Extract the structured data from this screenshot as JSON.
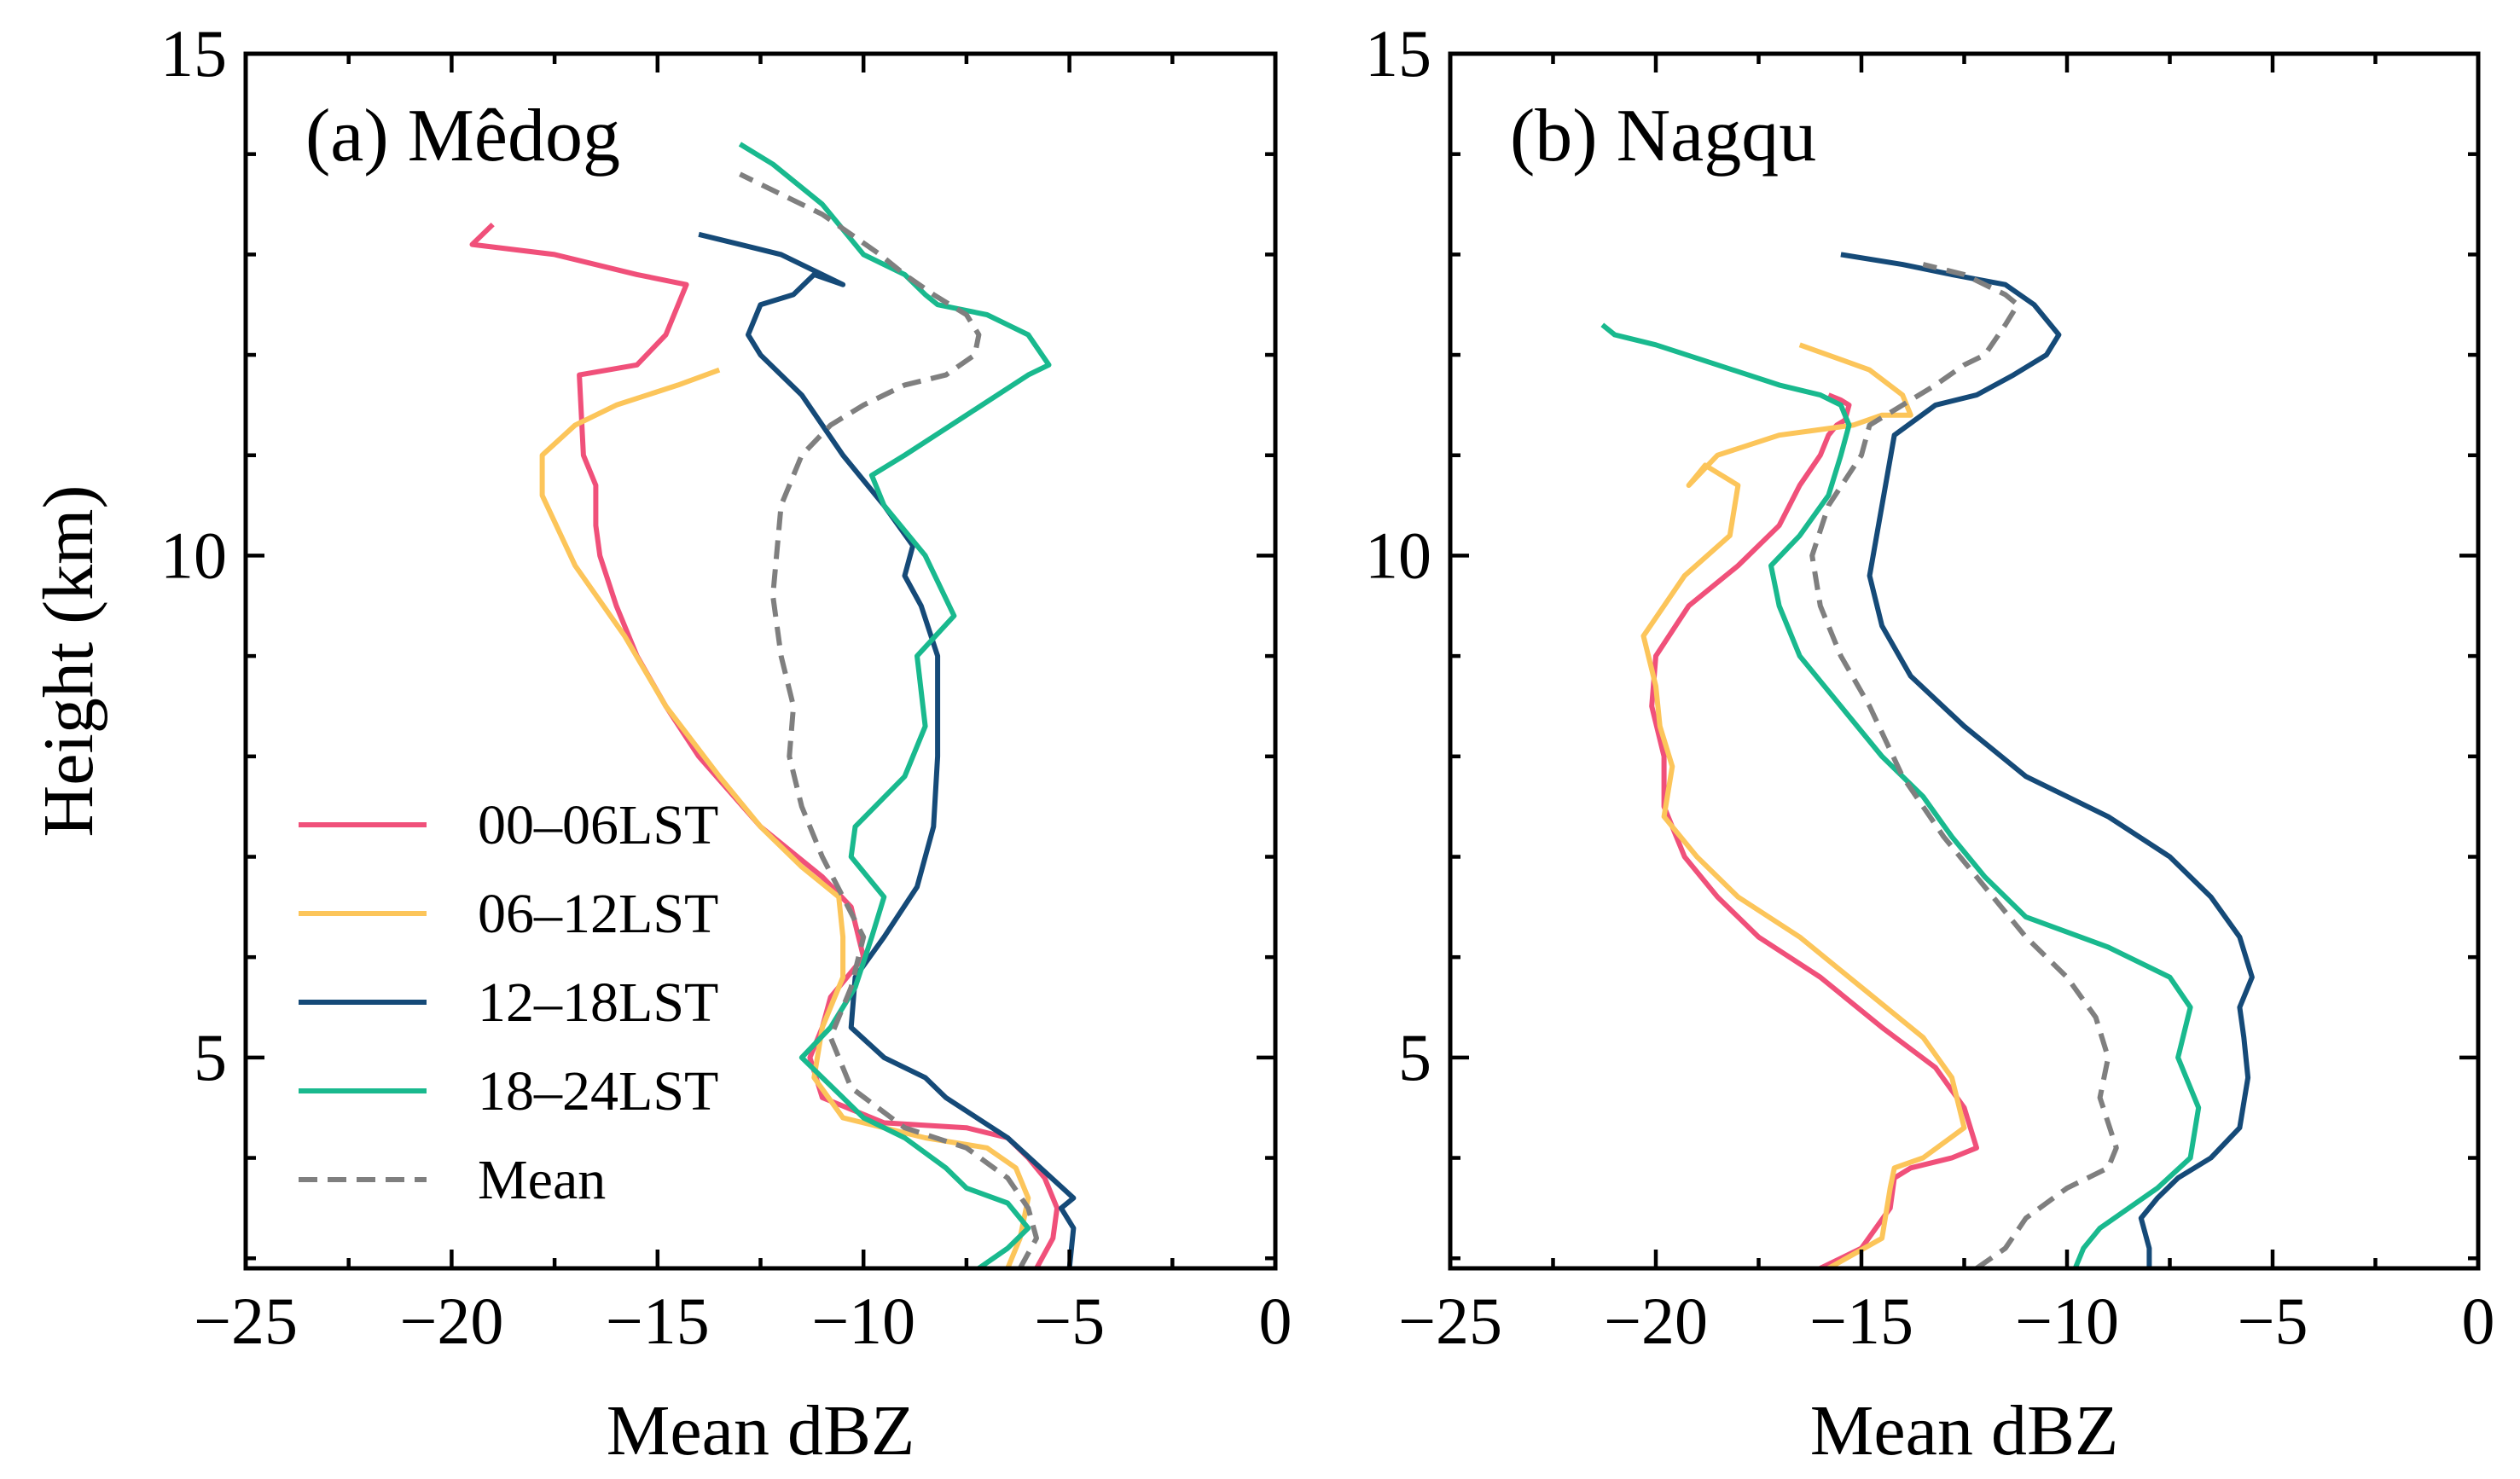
{
  "chart_data": [
    {
      "type": "line",
      "orientation": "vertical-profile",
      "title": "(a) Mêdog",
      "xlabel": "Mean dBZ",
      "ylabel": "Height (km)",
      "xlim": [
        -25,
        0
      ],
      "ylim": [
        2.9,
        15
      ],
      "xticks": [
        -25,
        -20,
        -15,
        -10,
        -5,
        0
      ],
      "xtick_labels": [
        "−25",
        "−20",
        "−15",
        "−10",
        "−5",
        "0"
      ],
      "yticks": [
        5,
        10,
        15
      ],
      "ytick_labels": [
        "5",
        "10",
        "15"
      ],
      "legend": {
        "placement": "lower-left"
      },
      "series": [
        {
          "name": "00–06LST",
          "color": "#f0507a",
          "dash": "solid",
          "x": [
            -5.8,
            -5.4,
            -5.3,
            -5.6,
            -6.0,
            -6.5,
            -7.5,
            -9.5,
            -11.0,
            -11.3,
            -11.0,
            -10.8,
            -10.0,
            -10.3,
            -11.0,
            -12.5,
            -14.0,
            -14.8,
            -15.5,
            -16.0,
            -16.4,
            -16.5,
            -16.5,
            -16.8,
            -16.9,
            -15.5,
            -14.8,
            -14.3,
            -15.5,
            -17.5,
            -19.5,
            -19.0
          ],
          "y": [
            2.9,
            3.2,
            3.5,
            3.8,
            4.0,
            4.2,
            4.3,
            4.35,
            4.6,
            5.0,
            5.3,
            5.6,
            6.0,
            6.5,
            6.8,
            7.3,
            8.0,
            8.5,
            9.0,
            9.5,
            10.0,
            10.3,
            10.7,
            11.0,
            11.8,
            11.9,
            12.2,
            12.7,
            12.8,
            13.0,
            13.1,
            13.3
          ]
        },
        {
          "name": "06–12LST",
          "color": "#fcc55a",
          "dash": "solid",
          "x": [
            -6.5,
            -6.2,
            -6.0,
            -6.3,
            -7.0,
            -8.5,
            -10.5,
            -11.2,
            -11.0,
            -10.5,
            -10.5,
            -10.6,
            -11.5,
            -12.5,
            -13.5,
            -14.8,
            -15.8,
            -17.0,
            -17.8,
            -17.8,
            -17.0,
            -16.0,
            -14.5,
            -13.5
          ],
          "y": [
            2.9,
            3.2,
            3.6,
            3.9,
            4.1,
            4.2,
            4.4,
            4.8,
            5.3,
            5.8,
            6.2,
            6.6,
            6.9,
            7.3,
            7.8,
            8.5,
            9.2,
            9.9,
            10.6,
            11.0,
            11.3,
            11.5,
            11.7,
            11.85
          ]
        },
        {
          "name": "12–18LST",
          "color": "#154a78",
          "dash": "solid",
          "x": [
            -5.0,
            -4.9,
            -5.2,
            -4.9,
            -6.5,
            -8.0,
            -8.5,
            -9.5,
            -10.3,
            -10.2,
            -9.5,
            -8.7,
            -8.3,
            -8.2,
            -8.2,
            -8.2,
            -8.6,
            -9.0,
            -8.8,
            -9.5,
            -10.5,
            -11.5,
            -12.5,
            -12.8,
            -12.5,
            -11.7,
            -11.2,
            -10.5,
            -12.0,
            -13.0,
            -14.0
          ],
          "y": [
            2.9,
            3.3,
            3.5,
            3.6,
            4.2,
            4.6,
            4.8,
            5.0,
            5.3,
            5.8,
            6.2,
            6.7,
            7.3,
            8.0,
            8.7,
            9.0,
            9.5,
            9.8,
            10.1,
            10.5,
            11.0,
            11.6,
            12.0,
            12.2,
            12.5,
            12.6,
            12.8,
            12.7,
            13.0,
            13.1,
            13.2
          ]
        },
        {
          "name": "18–24LST",
          "color": "#19b98e",
          "dash": "solid",
          "x": [
            -7.2,
            -6.5,
            -6.0,
            -6.5,
            -7.5,
            -8.0,
            -9.0,
            -10.0,
            -10.5,
            -11.5,
            -10.8,
            -10.2,
            -9.8,
            -9.5,
            -10.3,
            -10.2,
            -9.0,
            -8.5,
            -8.7,
            -7.8,
            -8.5,
            -9.5,
            -9.8,
            -9.0,
            -7.5,
            -6.0,
            -5.5,
            -6.0,
            -7.0,
            -8.2,
            -8.5,
            -9.0,
            -10.0,
            -11.0,
            -12.2,
            -13.0
          ],
          "y": [
            2.9,
            3.1,
            3.3,
            3.55,
            3.7,
            3.9,
            4.2,
            4.4,
            4.6,
            5.0,
            5.3,
            5.7,
            6.2,
            6.6,
            7.0,
            7.3,
            7.8,
            8.3,
            9.0,
            9.4,
            10.0,
            10.5,
            10.8,
            11.0,
            11.4,
            11.8,
            11.9,
            12.2,
            12.4,
            12.5,
            12.6,
            12.8,
            13.0,
            13.5,
            13.9,
            14.1
          ]
        },
        {
          "name": "Mean",
          "color": "#7f7f7f",
          "dash": "dashed",
          "x": [
            -6.2,
            -5.8,
            -6.0,
            -6.5,
            -7.5,
            -9.0,
            -10.3,
            -10.8,
            -10.3,
            -10.0,
            -10.5,
            -11.0,
            -11.5,
            -11.8,
            -11.7,
            -12.0,
            -12.2,
            -12.0,
            -11.5,
            -10.8,
            -10.0,
            -9.0,
            -8.0,
            -7.3,
            -7.2,
            -7.5,
            -8.3,
            -9.0,
            -9.6,
            -10.3,
            -11.0,
            -12.0,
            -13.0
          ],
          "y": [
            2.9,
            3.2,
            3.5,
            3.8,
            4.1,
            4.3,
            4.7,
            5.2,
            5.7,
            6.2,
            6.6,
            7.0,
            7.5,
            8.0,
            8.5,
            9.0,
            9.6,
            10.5,
            11.0,
            11.3,
            11.5,
            11.7,
            11.8,
            12.0,
            12.2,
            12.4,
            12.6,
            12.8,
            13.0,
            13.2,
            13.4,
            13.6,
            13.8
          ]
        }
      ]
    },
    {
      "type": "line",
      "orientation": "vertical-profile",
      "title": "(b) Nagqu",
      "xlabel": "Mean dBZ",
      "ylabel": "",
      "xlim": [
        -25,
        0
      ],
      "ylim": [
        2.9,
        15
      ],
      "xticks": [
        -25,
        -20,
        -15,
        -10,
        -5,
        0
      ],
      "xtick_labels": [
        "−25",
        "−20",
        "−15",
        "−10",
        "−5",
        "0"
      ],
      "yticks": [
        5,
        10,
        15
      ],
      "ytick_labels": [
        "5",
        "10",
        "15"
      ],
      "series": [
        {
          "name": "00–06LST",
          "color": "#f0507a",
          "dash": "solid",
          "x": [
            -16.0,
            -15.0,
            -14.3,
            -14.2,
            -13.8,
            -12.8,
            -12.2,
            -12.5,
            -13.2,
            -14.5,
            -16.0,
            -17.5,
            -18.5,
            -19.3,
            -19.8,
            -19.8,
            -20.1,
            -20.0,
            -19.2,
            -18.0,
            -17.0,
            -16.5,
            -16.0,
            -15.8,
            -15.6,
            -15.4,
            -15.3,
            -15.5,
            -15.8
          ],
          "y": [
            2.9,
            3.1,
            3.5,
            3.8,
            3.9,
            4.0,
            4.1,
            4.5,
            4.9,
            5.3,
            5.8,
            6.2,
            6.6,
            7.0,
            7.5,
            8.0,
            8.5,
            9.0,
            9.5,
            9.9,
            10.3,
            10.7,
            11.0,
            11.2,
            11.3,
            11.35,
            11.5,
            11.55,
            11.6
          ]
        },
        {
          "name": "06–12LST",
          "color": "#fcc55a",
          "dash": "solid",
          "x": [
            -15.8,
            -14.5,
            -14.3,
            -14.2,
            -13.5,
            -12.5,
            -12.8,
            -13.5,
            -15.0,
            -16.5,
            -18.0,
            -19.0,
            -19.8,
            -19.6,
            -19.9,
            -20.0,
            -20.3,
            -19.8,
            -19.3,
            -18.2,
            -18.0,
            -18.8,
            -19.2,
            -18.5,
            -17.0,
            -15.2,
            -14.5,
            -13.8,
            -14.0,
            -14.8,
            -16.5
          ],
          "y": [
            2.9,
            3.2,
            3.7,
            3.9,
            4.0,
            4.3,
            4.8,
            5.2,
            5.7,
            6.2,
            6.6,
            7.0,
            7.4,
            7.9,
            8.3,
            8.7,
            9.2,
            9.5,
            9.8,
            10.2,
            10.7,
            10.9,
            10.7,
            11.0,
            11.2,
            11.3,
            11.4,
            11.4,
            11.6,
            11.85,
            12.1
          ]
        },
        {
          "name": "12–18LST",
          "color": "#154a78",
          "dash": "solid",
          "x": [
            -8.0,
            -8.0,
            -8.2,
            -7.8,
            -7.3,
            -6.5,
            -5.8,
            -5.6,
            -5.7,
            -5.8,
            -5.5,
            -5.8,
            -6.5,
            -7.5,
            -9.0,
            -11.0,
            -12.5,
            -13.8,
            -14.5,
            -14.8,
            -14.5,
            -14.2,
            -13.2,
            -12.2,
            -11.3,
            -10.5,
            -10.2,
            -10.8,
            -11.5,
            -12.8,
            -14.0,
            -15.5
          ],
          "y": [
            2.9,
            3.1,
            3.4,
            3.6,
            3.8,
            4.0,
            4.3,
            4.8,
            5.2,
            5.5,
            5.8,
            6.2,
            6.6,
            7.0,
            7.4,
            7.8,
            8.3,
            8.8,
            9.3,
            9.8,
            10.5,
            11.2,
            11.5,
            11.6,
            11.8,
            12.0,
            12.2,
            12.5,
            12.7,
            12.8,
            12.9,
            13.0
          ]
        },
        {
          "name": "18–24LST",
          "color": "#19b98e",
          "dash": "solid",
          "x": [
            -9.8,
            -9.6,
            -9.2,
            -8.5,
            -7.8,
            -7.0,
            -6.8,
            -7.3,
            -7.0,
            -7.5,
            -9.0,
            -11.0,
            -12.0,
            -12.8,
            -13.5,
            -14.5,
            -15.5,
            -16.5,
            -17.0,
            -17.2,
            -16.5,
            -15.8,
            -15.5,
            -15.3,
            -15.5,
            -16.0,
            -17.0,
            -18.5,
            -20.0,
            -21.0,
            -21.3
          ],
          "y": [
            2.9,
            3.1,
            3.3,
            3.5,
            3.7,
            4.0,
            4.5,
            5.0,
            5.5,
            5.8,
            6.1,
            6.4,
            6.8,
            7.2,
            7.6,
            8.0,
            8.5,
            9.0,
            9.5,
            9.9,
            10.2,
            10.6,
            11.0,
            11.3,
            11.5,
            11.6,
            11.7,
            11.9,
            12.1,
            12.2,
            12.3
          ]
        },
        {
          "name": "Mean",
          "color": "#7f7f7f",
          "dash": "dashed",
          "x": [
            -12.2,
            -11.5,
            -11.0,
            -10.0,
            -9.0,
            -8.8,
            -9.2,
            -9.0,
            -9.3,
            -10.0,
            -11.0,
            -12.0,
            -13.0,
            -14.0,
            -14.8,
            -15.5,
            -16.0,
            -16.2,
            -15.8,
            -15.0,
            -14.8,
            -14.0,
            -13.2,
            -12.5,
            -12.0,
            -11.5,
            -11.2,
            -11.5,
            -12.0,
            -12.5,
            -13.5
          ],
          "y": [
            2.9,
            3.1,
            3.4,
            3.7,
            3.9,
            4.1,
            4.6,
            5.0,
            5.4,
            5.8,
            6.2,
            6.7,
            7.2,
            7.8,
            8.5,
            9.0,
            9.5,
            10.0,
            10.5,
            11.0,
            11.3,
            11.5,
            11.7,
            11.9,
            12.0,
            12.3,
            12.5,
            12.6,
            12.7,
            12.8,
            12.9
          ]
        }
      ]
    }
  ]
}
